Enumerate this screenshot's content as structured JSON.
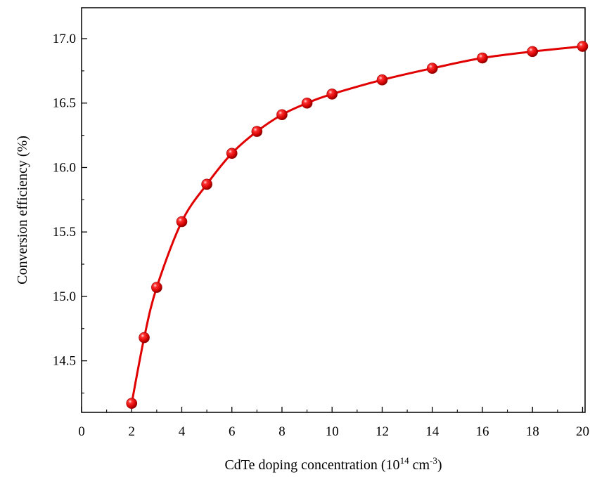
{
  "chart_data": {
    "type": "line",
    "title": "",
    "xlabel": {
      "base": "CdTe doping concentration (10",
      "exp": "14",
      "unit": " cm",
      "unit_exp": "-3",
      "close": ")"
    },
    "ylabel": "Conversion efficiency (%)",
    "xlim": [
      0,
      20.1
    ],
    "ylim": [
      14.1,
      17.24
    ],
    "xticks": [
      0,
      2,
      4,
      6,
      8,
      10,
      12,
      14,
      16,
      18,
      20
    ],
    "yticks": [
      14.5,
      15.0,
      15.5,
      16.0,
      16.5,
      17.0
    ],
    "ytick_labels": [
      "14.5",
      "15.0",
      "15.5",
      "16.0",
      "16.5",
      "17.0"
    ],
    "grid": false,
    "series": [
      {
        "color": "#e00000",
        "marker": "sphere",
        "x": [
          2,
          2.5,
          3,
          4,
          5,
          6,
          7,
          8,
          9,
          10,
          12,
          14,
          16,
          18,
          20
        ],
        "y": [
          14.17,
          14.68,
          15.07,
          15.58,
          15.87,
          16.11,
          16.28,
          16.41,
          16.5,
          16.57,
          16.68,
          16.77,
          16.85,
          16.9,
          16.94
        ]
      }
    ]
  }
}
